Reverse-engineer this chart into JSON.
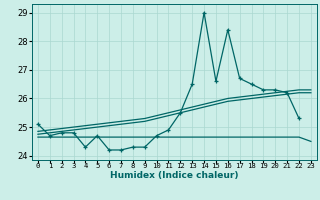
{
  "xlabel": "Humidex (Indice chaleur)",
  "bg_color": "#cceee8",
  "grid_color": "#aad8d0",
  "line_color": "#006666",
  "x": [
    0,
    1,
    2,
    3,
    4,
    5,
    6,
    7,
    8,
    9,
    10,
    11,
    12,
    13,
    14,
    15,
    16,
    17,
    18,
    19,
    20,
    21,
    22,
    23
  ],
  "main_line": [
    25.1,
    24.7,
    24.8,
    24.8,
    24.3,
    24.7,
    24.2,
    24.2,
    24.3,
    24.3,
    24.7,
    24.9,
    25.5,
    26.5,
    29.0,
    26.6,
    28.4,
    26.7,
    26.5,
    26.3,
    26.3,
    26.2,
    25.3,
    null
  ],
  "trend_upper": [
    24.85,
    24.9,
    24.95,
    25.0,
    25.05,
    25.1,
    25.15,
    25.2,
    25.25,
    25.3,
    25.4,
    25.5,
    25.6,
    25.7,
    25.8,
    25.9,
    26.0,
    26.05,
    26.1,
    26.15,
    26.2,
    26.25,
    26.3,
    26.3
  ],
  "trend_lower": [
    24.75,
    24.8,
    24.85,
    24.9,
    24.95,
    25.0,
    25.05,
    25.1,
    25.15,
    25.2,
    25.3,
    25.4,
    25.5,
    25.6,
    25.7,
    25.8,
    25.9,
    25.95,
    26.0,
    26.05,
    26.1,
    26.15,
    26.2,
    26.2
  ],
  "flat_line": [
    24.65,
    24.65,
    24.65,
    24.65,
    24.65,
    24.65,
    24.65,
    24.65,
    24.65,
    24.65,
    24.65,
    24.65,
    24.65,
    24.65,
    24.65,
    24.65,
    24.65,
    24.65,
    24.65,
    24.65,
    24.65,
    24.65,
    24.65,
    24.5
  ],
  "ylim": [
    23.85,
    29.3
  ],
  "yticks": [
    24,
    25,
    26,
    27,
    28,
    29
  ],
  "xlim": [
    -0.5,
    23.5
  ],
  "figsize": [
    3.2,
    2.0
  ],
  "dpi": 100
}
